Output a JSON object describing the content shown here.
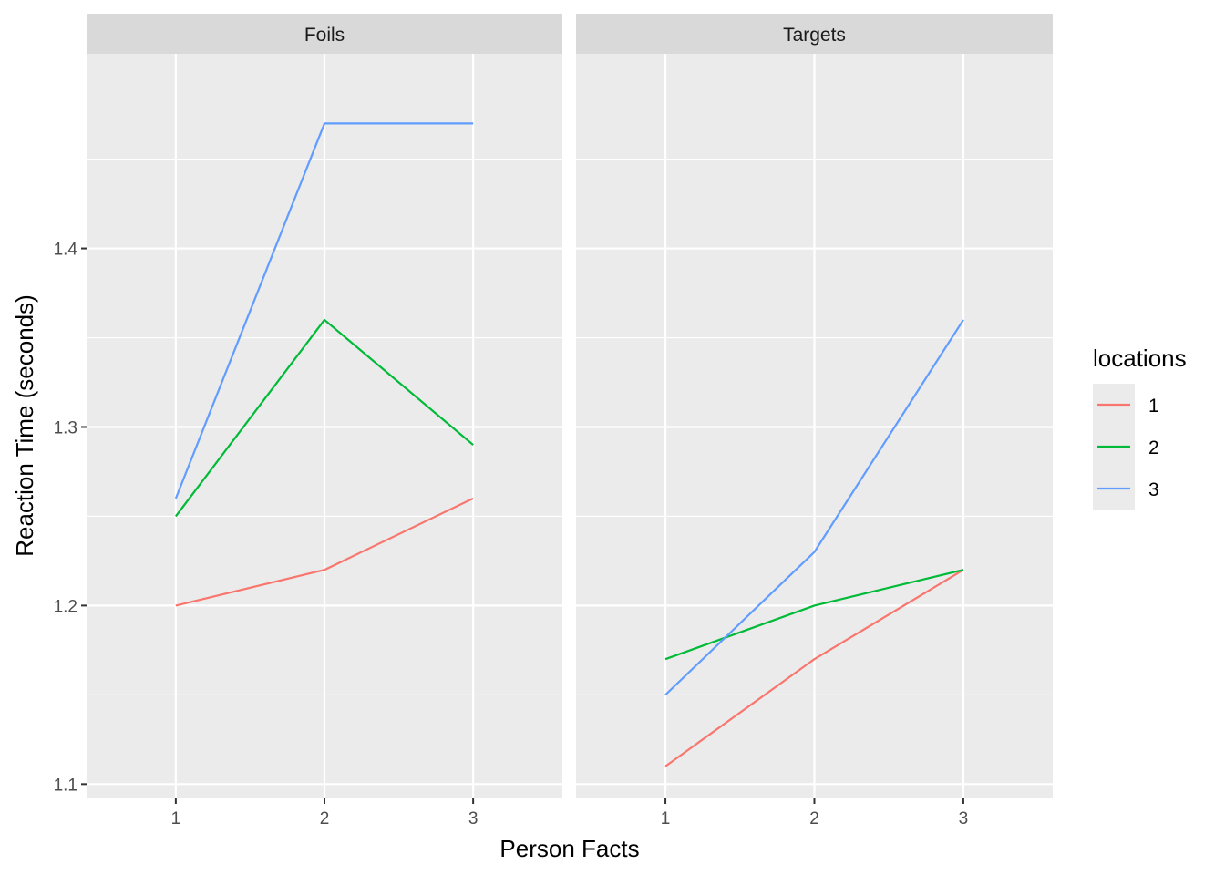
{
  "chart_data": {
    "type": "line",
    "xlabel": "Person Facts",
    "ylabel": "Reaction Time (seconds)",
    "x": [
      1,
      2,
      3
    ],
    "xlim": [
      0.4,
      3.6
    ],
    "ylim": [
      1.092,
      1.509
    ],
    "y_ticks": [
      1.1,
      1.2,
      1.3,
      1.4
    ],
    "y_tick_labels": [
      "1.1",
      "1.2",
      "1.3",
      "1.4"
    ],
    "x_tick_labels": [
      "1",
      "2",
      "3"
    ],
    "grid": true,
    "legend": {
      "title": "locations",
      "placement": "right",
      "entries": [
        "1",
        "2",
        "3"
      ]
    },
    "colors": {
      "1": "#F8766D",
      "2": "#00BA38",
      "3": "#619CFF",
      "panel_bg": "#EBEBEB",
      "strip_bg": "#D9D9D9"
    },
    "panels": [
      {
        "title": "Foils",
        "series": [
          {
            "name": "1",
            "values": [
              1.2,
              1.22,
              1.26
            ]
          },
          {
            "name": "2",
            "values": [
              1.25,
              1.36,
              1.29
            ]
          },
          {
            "name": "3",
            "values": [
              1.26,
              1.47,
              1.47
            ]
          }
        ]
      },
      {
        "title": "Targets",
        "series": [
          {
            "name": "1",
            "values": [
              1.11,
              1.17,
              1.22
            ]
          },
          {
            "name": "2",
            "values": [
              1.17,
              1.2,
              1.22
            ]
          },
          {
            "name": "3",
            "values": [
              1.15,
              1.23,
              1.36
            ]
          }
        ]
      }
    ]
  }
}
